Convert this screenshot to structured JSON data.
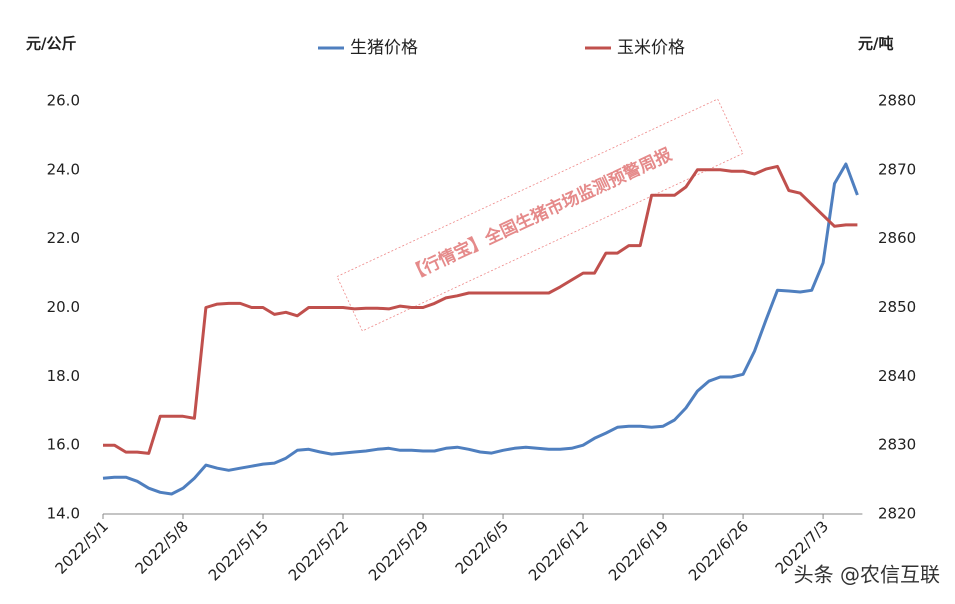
{
  "chart_data": {
    "type": "line",
    "y_label": "元/公斤",
    "y2_label": "元/吨",
    "watermark": "【行情宝】全国生猪市场监测预警周报",
    "credit": "头条 @农信互联",
    "x": [
      "2022/5/1",
      "2022/5/2",
      "2022/5/3",
      "2022/5/4",
      "2022/5/5",
      "2022/5/6",
      "2022/5/7",
      "2022/5/8",
      "2022/5/9",
      "2022/5/10",
      "2022/5/11",
      "2022/5/12",
      "2022/5/13",
      "2022/5/14",
      "2022/5/15",
      "2022/5/16",
      "2022/5/17",
      "2022/5/18",
      "2022/5/19",
      "2022/5/20",
      "2022/5/21",
      "2022/5/22",
      "2022/5/23",
      "2022/5/24",
      "2022/5/25",
      "2022/5/26",
      "2022/5/27",
      "2022/5/28",
      "2022/5/29",
      "2022/5/30",
      "2022/5/31",
      "2022/6/1",
      "2022/6/2",
      "2022/6/3",
      "2022/6/4",
      "2022/6/5",
      "2022/6/6",
      "2022/6/7",
      "2022/6/8",
      "2022/6/9",
      "2022/6/10",
      "2022/6/11",
      "2022/6/12",
      "2022/6/13",
      "2022/6/14",
      "2022/6/15",
      "2022/6/16",
      "2022/6/17",
      "2022/6/18",
      "2022/6/19",
      "2022/6/20",
      "2022/6/21",
      "2022/6/22",
      "2022/6/23",
      "2022/6/24",
      "2022/6/25",
      "2022/6/26",
      "2022/6/27",
      "2022/6/28",
      "2022/6/29",
      "2022/6/30",
      "2022/7/1",
      "2022/7/2",
      "2022/7/3",
      "2022/7/4",
      "2022/7/5",
      "2022/7/6"
    ],
    "xticks": [
      "2022/5/1",
      "2022/5/8",
      "2022/5/15",
      "2022/5/22",
      "2022/5/29",
      "2022/6/5",
      "2022/6/12",
      "2022/6/19",
      "2022/6/26",
      "2022/7/3"
    ],
    "series": [
      {
        "name": "生猪价格",
        "color": "#4f7fbf",
        "values": [
          15.04,
          15.07,
          15.07,
          14.95,
          14.75,
          14.63,
          14.58,
          14.75,
          15.04,
          15.42,
          15.33,
          15.27,
          15.33,
          15.39,
          15.45,
          15.48,
          15.62,
          15.85,
          15.88,
          15.8,
          15.74,
          15.77,
          15.8,
          15.83,
          15.88,
          15.91,
          15.85,
          15.85,
          15.83,
          15.83,
          15.91,
          15.94,
          15.88,
          15.8,
          15.77,
          15.85,
          15.91,
          15.94,
          15.91,
          15.88,
          15.88,
          15.91,
          16.0,
          16.2,
          16.35,
          16.52,
          16.55,
          16.55,
          16.52,
          16.55,
          16.73,
          17.08,
          17.57,
          17.86,
          17.98,
          17.98,
          18.06,
          18.73,
          19.63,
          20.5,
          20.48,
          20.45,
          20.5,
          21.3,
          23.6,
          24.17,
          23.27
        ]
      },
      {
        "name": "玉米价格",
        "color": "#c0504d",
        "axis": "y2",
        "values": [
          2830,
          2830,
          2829,
          2829,
          2828.8,
          2834.2,
          2834.2,
          2834.2,
          2833.9,
          2850,
          2850.5,
          2850.6,
          2850.6,
          2850,
          2850,
          2849,
          2849.3,
          2848.8,
          2850,
          2850,
          2850,
          2850,
          2849.8,
          2849.9,
          2849.9,
          2849.8,
          2850.2,
          2850,
          2850,
          2850.6,
          2851.4,
          2851.7,
          2852.1,
          2852.1,
          2852.1,
          2852.1,
          2852.1,
          2852.1,
          2852.1,
          2852.1,
          2853,
          2854,
          2855,
          2855,
          2857.9,
          2857.9,
          2859,
          2859,
          2866.3,
          2866.3,
          2866.3,
          2867.5,
          2870,
          2870,
          2870,
          2869.8,
          2869.8,
          2869.4,
          2870.1,
          2870.5,
          2867,
          2866.6,
          2865,
          2863.4,
          2861.8,
          2862,
          2862
        ]
      }
    ],
    "ylim": [
      14,
      26
    ],
    "yticks": [
      {
        "value": 14,
        "label": "14.0"
      },
      {
        "value": 16,
        "label": "16.0"
      },
      {
        "value": 18,
        "label": "18.0"
      },
      {
        "value": 20,
        "label": "20.0"
      },
      {
        "value": 22,
        "label": "22.0"
      },
      {
        "value": 24,
        "label": "24.0"
      },
      {
        "value": 26,
        "label": "26.0"
      }
    ],
    "y2lim": [
      2820,
      2880
    ],
    "y2ticks": [
      2820,
      2830,
      2840,
      2850,
      2860,
      2870,
      2880
    ],
    "legend": "top",
    "grid": false
  }
}
